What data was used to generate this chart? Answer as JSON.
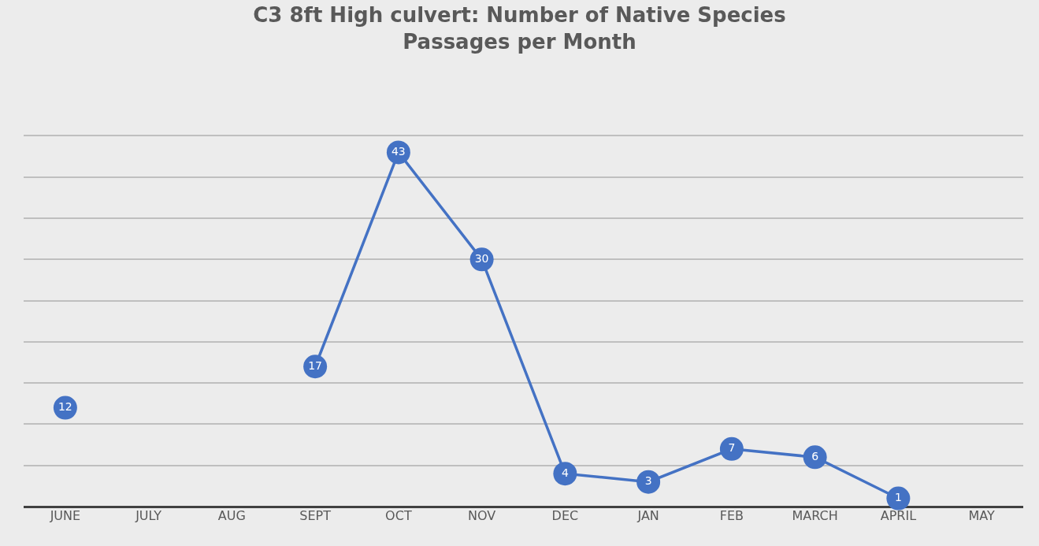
{
  "chart_data": {
    "type": "line",
    "title": "C3 8ft High culvert: Number of Native Species Passages per Month",
    "categories": [
      "JUNE",
      "JULY",
      "AUG",
      "SEPT",
      "OCT",
      "NOV",
      "DEC",
      "JAN",
      "FEB",
      "MARCH",
      "APRIL",
      "MAY"
    ],
    "series": [
      {
        "color": "#4472c4",
        "values": [
          12,
          null,
          null,
          17,
          43,
          30,
          4,
          3,
          7,
          6,
          1,
          null
        ]
      }
    ],
    "tick_labels": "x",
    "grid": "y",
    "data_labels": true,
    "marker": "circle",
    "line_style": "solid",
    "legend": false
  }
}
